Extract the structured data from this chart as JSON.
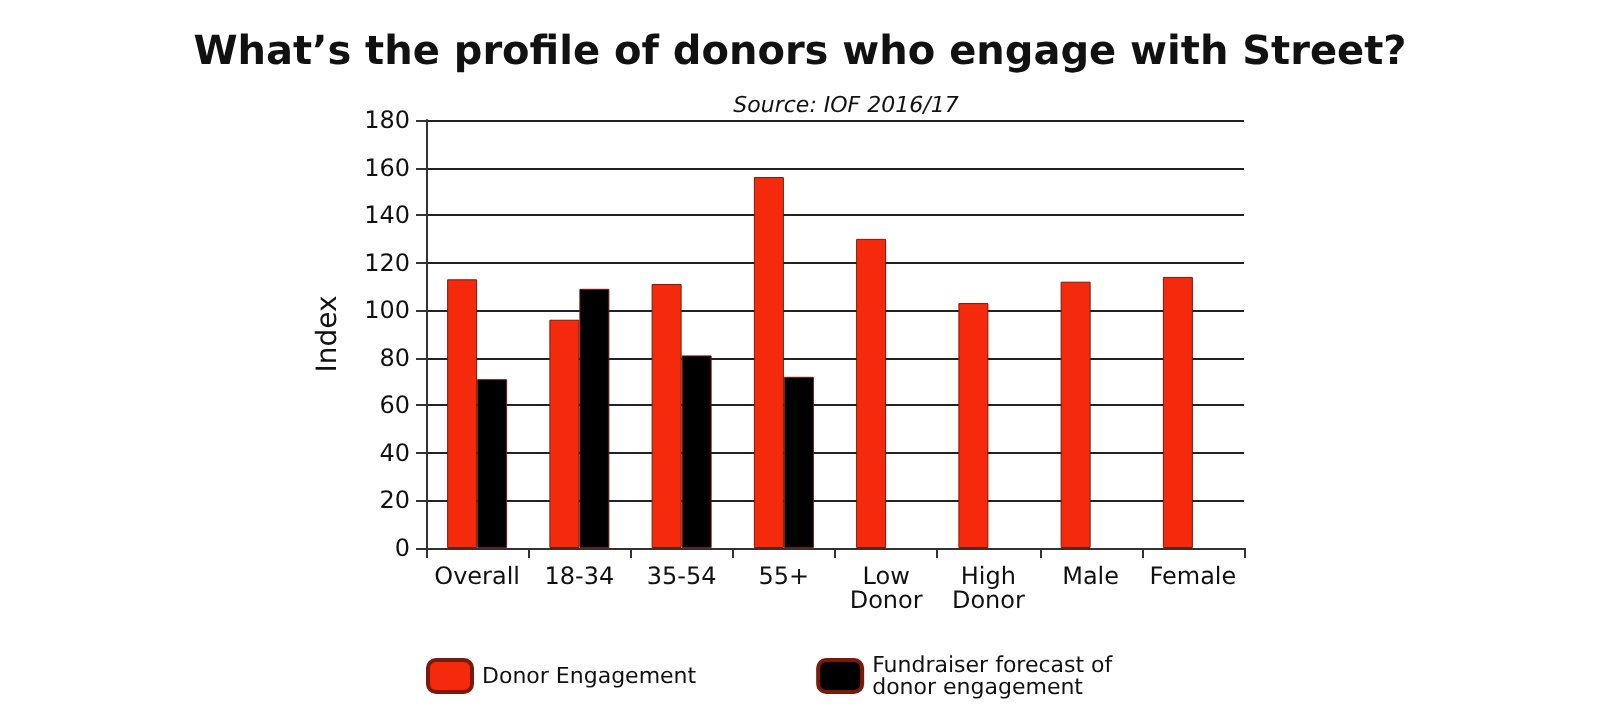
{
  "chart_data": {
    "type": "bar",
    "title": "What’s the profile of donors who engage with Street?",
    "subtitle": "Source: IOF 2016/17",
    "ylabel": "Index",
    "categories": [
      "Overall",
      "18-34",
      "35-54",
      "55+",
      "Low\nDonor",
      "High\nDonor",
      "Male",
      "Female"
    ],
    "series": [
      {
        "name": "Donor Engagement",
        "color": "#f52a0c",
        "values": [
          113,
          96,
          111,
          156,
          130,
          103,
          112,
          114
        ]
      },
      {
        "name": "Fundraiser forecast of\ndonor engagement",
        "color": "#000000",
        "values": [
          71,
          109,
          81,
          72,
          null,
          null,
          null,
          null
        ]
      }
    ],
    "ylim": [
      0,
      180
    ],
    "yticks": [
      0,
      20,
      40,
      60,
      80,
      100,
      120,
      140,
      160,
      180
    ],
    "grid": true,
    "legend": "bottom"
  }
}
